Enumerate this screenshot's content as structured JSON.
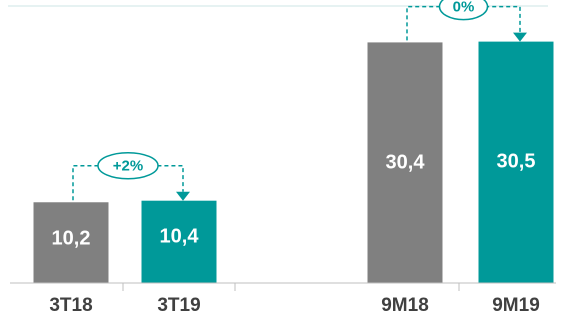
{
  "chart_data": {
    "type": "bar",
    "categories": [
      "3T18",
      "3T19",
      "9M18",
      "9M19"
    ],
    "values": [
      10.2,
      10.4,
      30.4,
      30.5
    ],
    "value_labels": [
      "10,2",
      "10,4",
      "30,4",
      "30,5"
    ],
    "bar_colors": [
      "#808080",
      "#009999",
      "#808080",
      "#009999"
    ],
    "ylim": [
      0,
      35
    ],
    "comparisons": [
      {
        "from": 0,
        "to": 1,
        "label": "+2%"
      },
      {
        "from": 2,
        "to": 3,
        "label": "0%"
      }
    ],
    "legend": "none",
    "grid": false
  },
  "colors": {
    "gray": "#808080",
    "teal": "#009999",
    "axis": "#bfbfbf",
    "top_rule": "#cce6e6",
    "category_text": "#404040"
  }
}
